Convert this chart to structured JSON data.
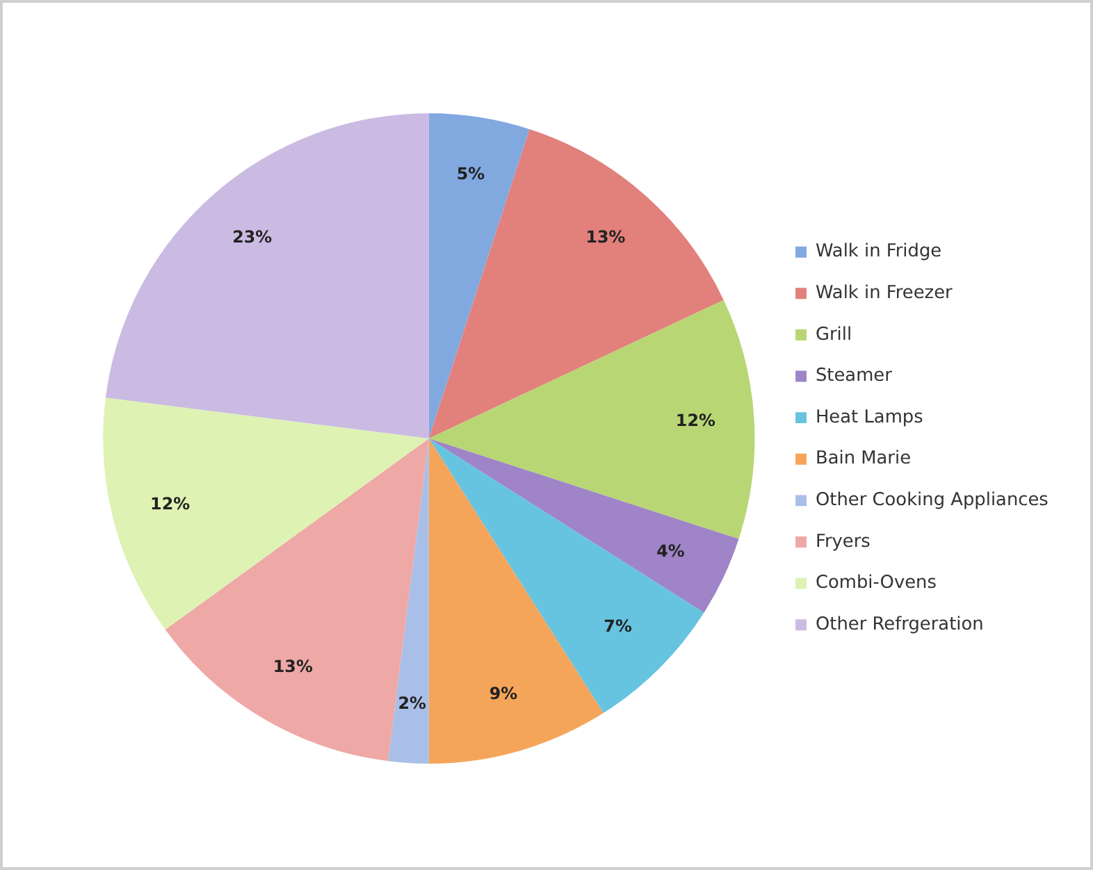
{
  "chart_data": {
    "type": "pie",
    "categories": [
      "Walk in Fridge",
      "Walk in Freezer",
      "Grill",
      "Steamer",
      "Heat Lamps",
      "Bain Marie",
      "Other Cooking Appliances",
      "Fryers",
      "Combi-Ovens",
      "Other Refrgeration"
    ],
    "values": [
      5,
      13,
      12,
      4,
      7,
      9,
      2,
      13,
      12,
      23
    ],
    "value_labels": [
      "5%",
      "13%",
      "12%",
      "4%",
      "7%",
      "9%",
      "2%",
      "13%",
      "12%",
      "23%"
    ],
    "colors": [
      "#82a8e0",
      "#e2807c",
      "#b8d674",
      "#9f84c8",
      "#66c4e0",
      "#f5a55a",
      "#a9bfe8",
      "#eea8a6",
      "#def2b4",
      "#cbbbe3"
    ],
    "legend": "right"
  }
}
